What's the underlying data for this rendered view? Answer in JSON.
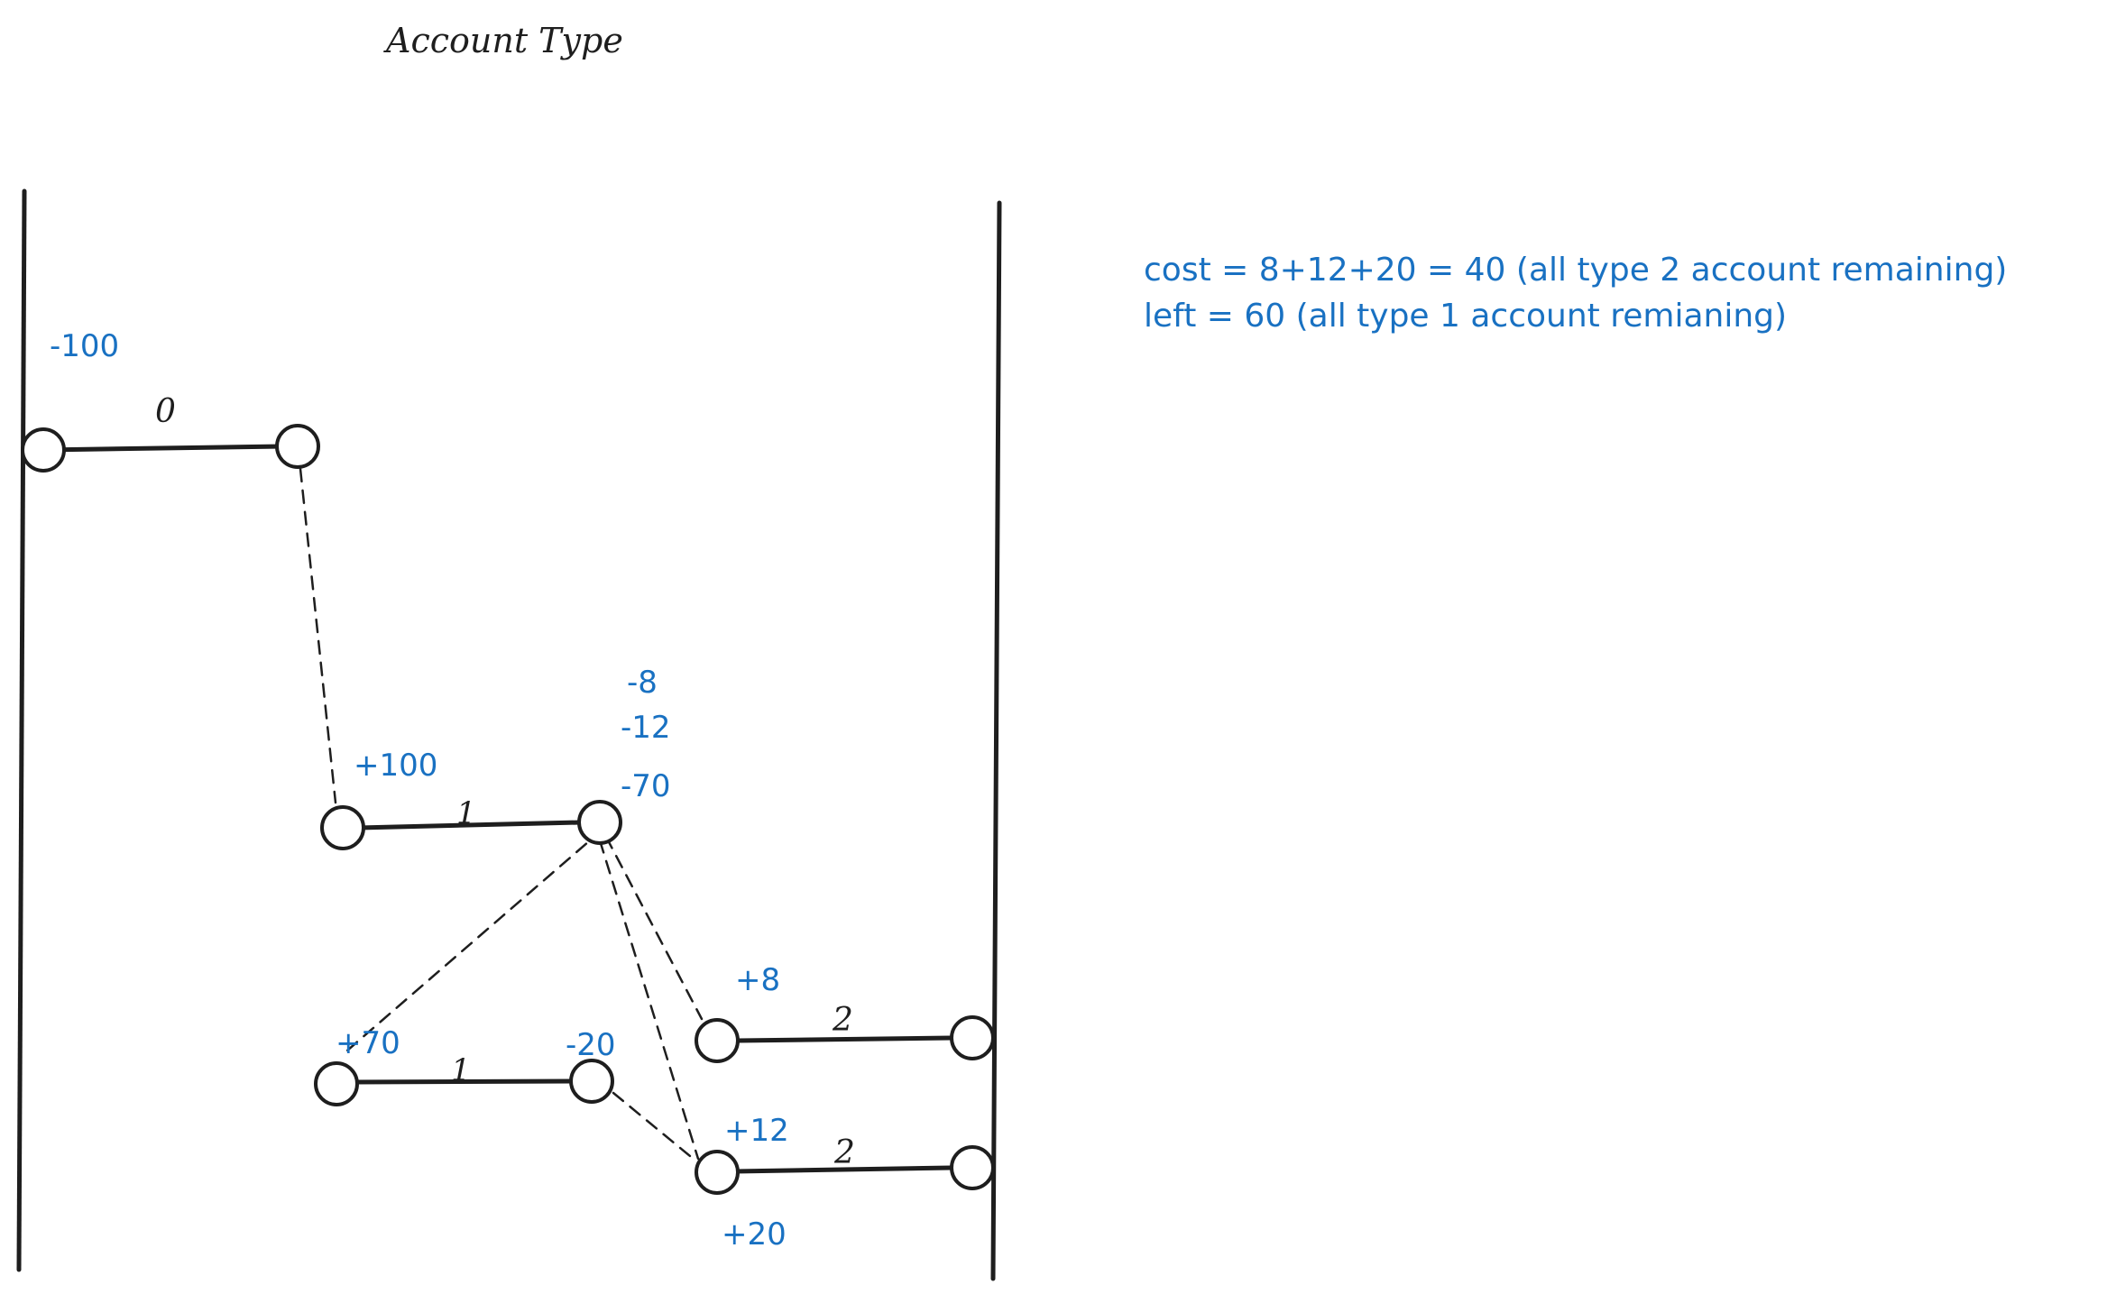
{
  "title": "Account Type",
  "notes": {
    "cost": "cost = 8+12+20 = 40 (all type 2 account remaining)",
    "left": "left = 60 (all type 1 account remianing)"
  },
  "edges": [
    {
      "weight": "0"
    },
    {
      "weight": "1"
    },
    {
      "weight": "1"
    },
    {
      "weight": "2"
    },
    {
      "weight": "2"
    }
  ],
  "values": {
    "n0": "-100",
    "n1": "+100",
    "n2a": "-8",
    "n2b": "-12",
    "n2c": "-70",
    "n3": "+70",
    "n4": "-20",
    "n5": "+8",
    "n6a": "+12",
    "n6b": "+20"
  },
  "colors": {
    "ink": "#1e1e1e",
    "annotation": "#1971c2"
  }
}
